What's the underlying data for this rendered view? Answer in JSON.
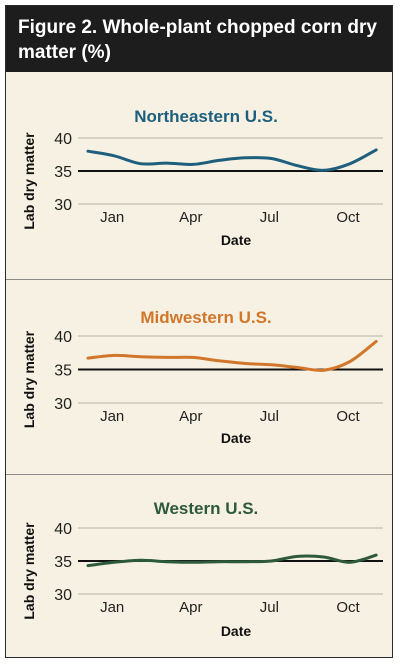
{
  "header": {
    "title": "Figure 2. Whole-plant chopped corn dry matter (%)"
  },
  "colors": {
    "northeast": "#1e5f7d",
    "midwest": "#d2762b",
    "west": "#2e5a3c"
  },
  "chart_data": [
    {
      "type": "line",
      "title": "Northeastern U.S.",
      "xlabel": "Date",
      "ylabel": "Lab dry matter",
      "x_ticks": [
        "Jan",
        "Apr",
        "Jul",
        "Oct"
      ],
      "y_ticks": [
        30,
        35,
        40
      ],
      "ylim": [
        30,
        40
      ],
      "reference_line": 35,
      "grid": "horizontal",
      "series": [
        {
          "x": [
            "Dec",
            "Jan",
            "Feb",
            "Mar",
            "Apr",
            "May",
            "Jun",
            "Jul",
            "Aug",
            "Sep",
            "Oct",
            "Nov"
          ],
          "values": [
            38.0,
            37.3,
            36.1,
            36.2,
            36.0,
            36.6,
            37.0,
            36.9,
            35.8,
            35.1,
            36.1,
            38.2
          ]
        }
      ]
    },
    {
      "type": "line",
      "title": "Midwestern U.S.",
      "xlabel": "Date",
      "ylabel": "Lab dry matter",
      "x_ticks": [
        "Jan",
        "Apr",
        "Jul",
        "Oct"
      ],
      "y_ticks": [
        30,
        35,
        40
      ],
      "ylim": [
        30,
        40
      ],
      "reference_line": 35,
      "grid": "horizontal",
      "series": [
        {
          "x": [
            "Dec",
            "Jan",
            "Feb",
            "Mar",
            "Apr",
            "May",
            "Jun",
            "Jul",
            "Aug",
            "Sep",
            "Oct",
            "Nov"
          ],
          "values": [
            36.7,
            37.1,
            36.9,
            36.8,
            36.8,
            36.3,
            35.9,
            35.7,
            35.3,
            34.9,
            36.2,
            39.2
          ]
        }
      ]
    },
    {
      "type": "line",
      "title": "Western U.S.",
      "xlabel": "Date",
      "ylabel": "Lab dry matter",
      "x_ticks": [
        "Jan",
        "Apr",
        "Jul",
        "Oct"
      ],
      "y_ticks": [
        30,
        35,
        40
      ],
      "ylim": [
        30,
        40
      ],
      "reference_line": 35,
      "grid": "horizontal",
      "series": [
        {
          "x": [
            "Dec",
            "Jan",
            "Feb",
            "Mar",
            "Apr",
            "May",
            "Jun",
            "Jul",
            "Aug",
            "Sep",
            "Oct",
            "Nov"
          ],
          "values": [
            34.3,
            34.8,
            35.1,
            34.9,
            34.8,
            34.9,
            34.9,
            35.0,
            35.7,
            35.6,
            34.8,
            35.9
          ]
        }
      ]
    }
  ]
}
